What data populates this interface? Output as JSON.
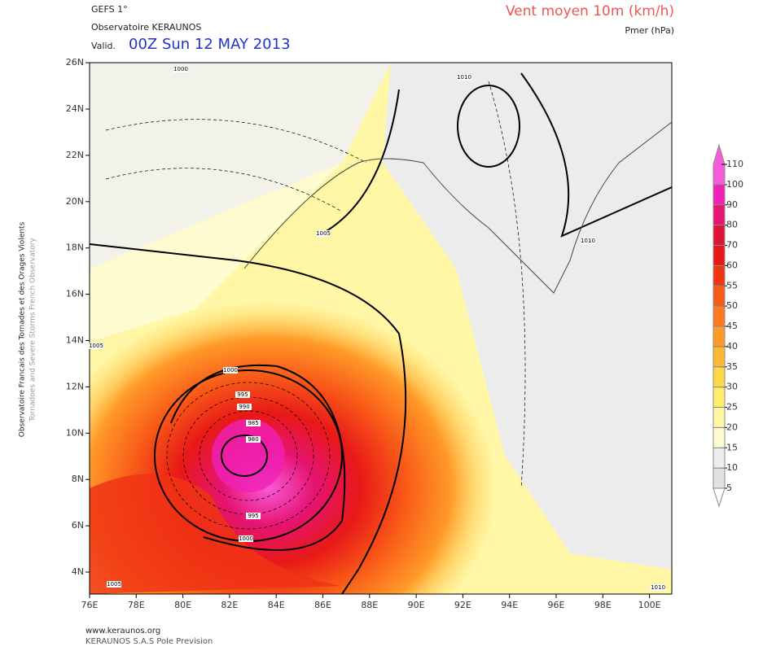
{
  "header": {
    "model": "GEFS 1°",
    "source": "Observatoire KERAUNOS",
    "valid_prefix": "Valid.",
    "valid": "00Z Sun 12 MAY 2013",
    "title": "Vent moyen 10m (km/h)",
    "subtitle": "Pmer (hPa)"
  },
  "side_labels": [
    "Observatoire Francais des Tornades et des Orages Violents",
    "Tornadoes and Severe Storms French Observatory"
  ],
  "map": {
    "lon_ticks": [
      "76E",
      "78E",
      "80E",
      "82E",
      "84E",
      "86E",
      "88E",
      "90E",
      "92E",
      "94E",
      "96E",
      "98E",
      "100E"
    ],
    "lat_ticks": [
      "4N",
      "6N",
      "8N",
      "10N",
      "12N",
      "14N",
      "16N",
      "18N",
      "20N",
      "22N",
      "24N",
      "26N"
    ],
    "isobar_labels": [
      "1000",
      "1010",
      "1010",
      "1005",
      "1000",
      "995",
      "990",
      "985",
      "980",
      "995",
      "1000",
      "1005",
      "1010",
      "1005"
    ]
  },
  "colorbar": {
    "levels": [
      5,
      10,
      15,
      20,
      25,
      30,
      35,
      40,
      45,
      50,
      55,
      60,
      70,
      80,
      90,
      100,
      110
    ],
    "colors": [
      "#ffffff",
      "#e2e2e2",
      "#ededed",
      "#fffbd0",
      "#fff6a6",
      "#ffee6a",
      "#ffd84a",
      "#ffb836",
      "#ff9a28",
      "#ff7a1e",
      "#f85a18",
      "#f03414",
      "#e81818",
      "#e01238",
      "#e61472",
      "#f020b8",
      "#f85ad8"
    ]
  },
  "footer": {
    "url": "www.keraunos.org",
    "company": "KERAUNOS S.A.S Pole Prevision"
  }
}
